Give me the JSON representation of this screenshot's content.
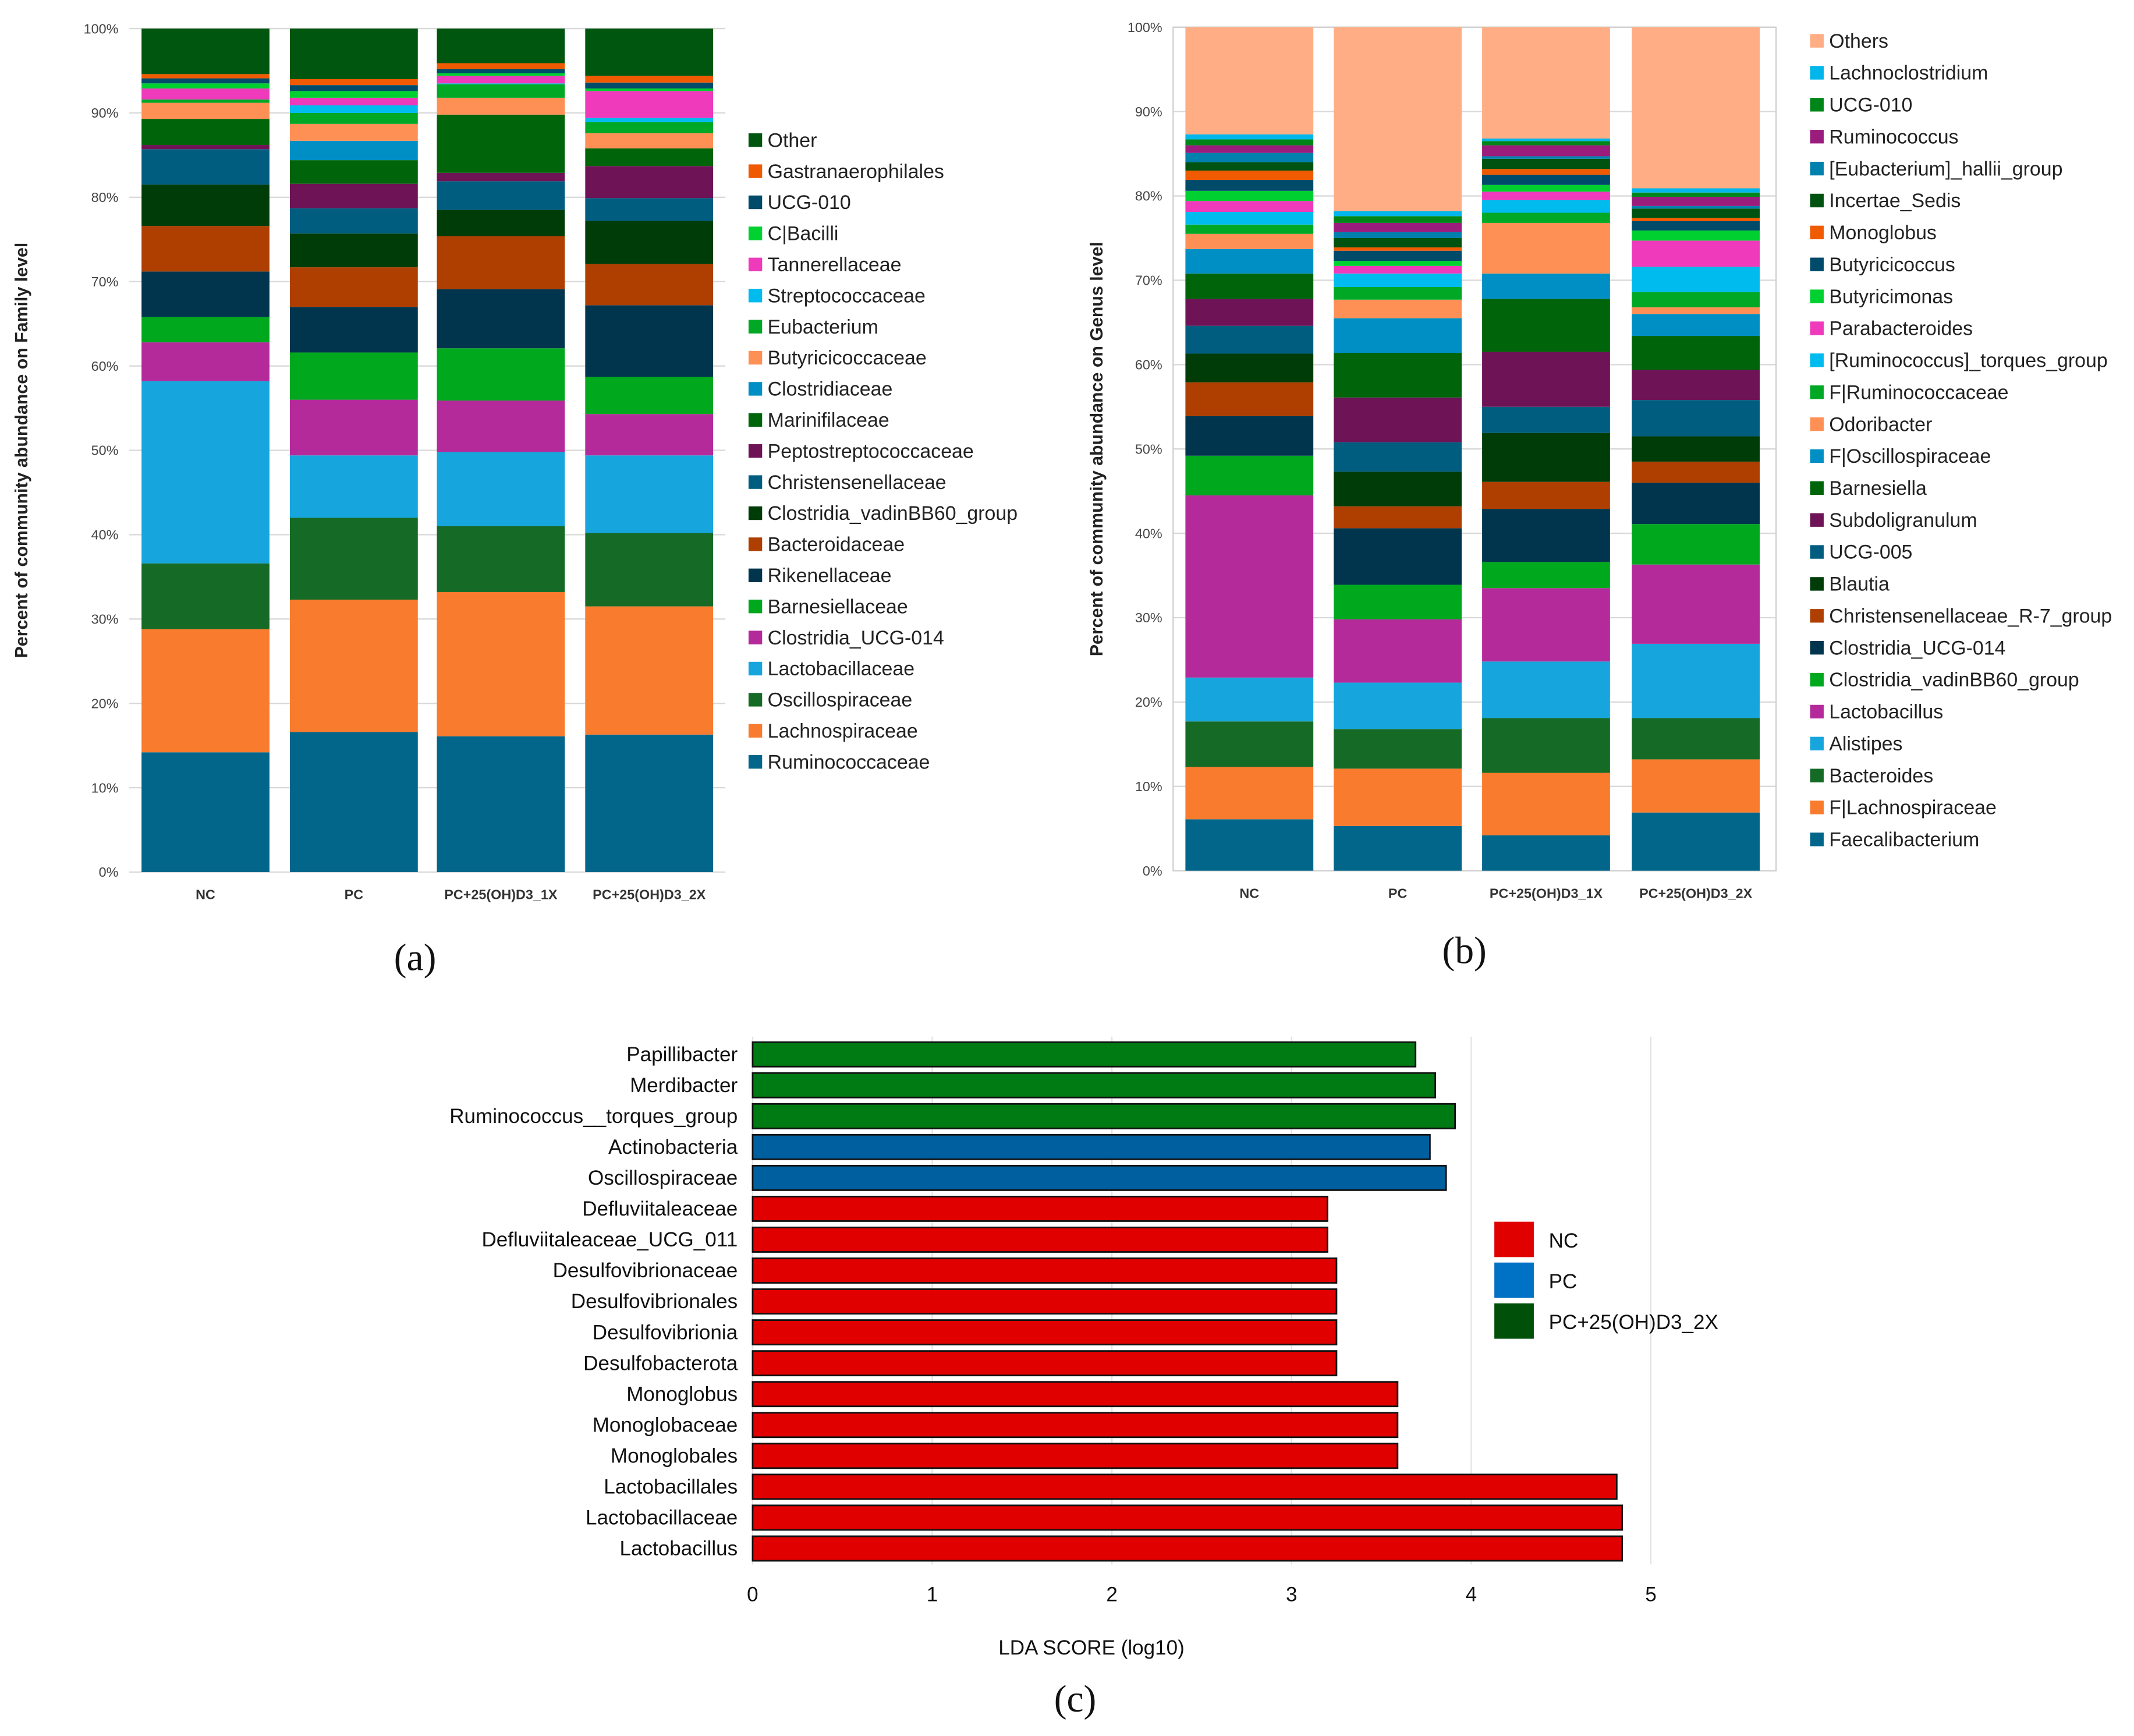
{
  "chart_data": [
    {
      "type": "bar",
      "stacked": true,
      "panel_label": "(a)",
      "title": "",
      "ylabel": "Percent of community  abundance on Family level",
      "xlabel": "",
      "ylim": [
        0,
        100
      ],
      "yticks": [
        "0%",
        "10%",
        "20%",
        "30%",
        "40%",
        "50%",
        "60%",
        "70%",
        "80%",
        "90%",
        "100%"
      ],
      "categories": [
        "NC",
        "PC",
        "PC+25(OH)D3_1X",
        "PC+25(OH)D3_2X"
      ],
      "legend_position": "right",
      "series": [
        {
          "name": "Ruminococcaceae",
          "color": "#02668b",
          "values": [
            14.2,
            16.6,
            16.1,
            16.3
          ]
        },
        {
          "name": "Lachnospiraceae",
          "color": "#f97b2d",
          "values": [
            14.6,
            15.7,
            17.1,
            15.2
          ]
        },
        {
          "name": "Oscillospiraceae",
          "color": "#156b25",
          "values": [
            7.8,
            9.7,
            7.8,
            8.7
          ]
        },
        {
          "name": "Lactobacillaceae",
          "color": "#16a6dd",
          "values": [
            21.6,
            7.4,
            8.8,
            9.2
          ]
        },
        {
          "name": "Clostridia_UCG-014",
          "color": "#b52a9a",
          "values": [
            4.6,
            6.6,
            6.1,
            4.9
          ]
        },
        {
          "name": "Barnesiellaceae",
          "color": "#00a81e",
          "values": [
            3.0,
            5.6,
            6.2,
            4.4
          ]
        },
        {
          "name": "Rikenellaceae",
          "color": "#00354d",
          "values": [
            5.4,
            5.4,
            7.0,
            8.5
          ]
        },
        {
          "name": "Bacteroidaceae",
          "color": "#ae3f00",
          "values": [
            5.4,
            4.7,
            6.3,
            4.9
          ]
        },
        {
          "name": "Clostridia_vadinBB60_group",
          "color": "#003c08",
          "values": [
            4.9,
            4.0,
            3.1,
            5.1
          ]
        },
        {
          "name": "Christensenellaceae",
          "color": "#005d80",
          "values": [
            4.2,
            3.0,
            3.4,
            2.7
          ]
        },
        {
          "name": "Peptostreptococcaceae",
          "color": "#6e1456",
          "values": [
            0.5,
            2.9,
            1.0,
            3.8
          ]
        },
        {
          "name": "Marinifilaceae",
          "color": "#00640a",
          "values": [
            3.1,
            2.8,
            6.9,
            2.1
          ]
        },
        {
          "name": "Clostridiaceae",
          "color": "#008fc4",
          "values": [
            0.0,
            2.3,
            0.0,
            0.0
          ]
        },
        {
          "name": "Butyricicoccaceae",
          "color": "#ff9055",
          "values": [
            1.9,
            2.0,
            2.0,
            1.8
          ]
        },
        {
          "name": "Eubacterium",
          "color": "#00a826",
          "values": [
            0.4,
            1.3,
            1.6,
            1.3
          ]
        },
        {
          "name": "Streptococcaceae",
          "color": "#00bbee",
          "values": [
            0.0,
            0.9,
            0.1,
            0.5
          ]
        },
        {
          "name": "Tannerellaceae",
          "color": "#ee3abb",
          "values": [
            1.3,
            0.9,
            0.9,
            3.2
          ]
        },
        {
          "name": "C|Bacilli",
          "color": "#00d030",
          "values": [
            0.6,
            0.8,
            0.3,
            0.3
          ]
        },
        {
          "name": "UCG-010",
          "color": "#004a6a",
          "values": [
            0.6,
            0.7,
            0.5,
            0.7
          ]
        },
        {
          "name": "Gastranaerophilales",
          "color": "#f05a00",
          "values": [
            0.5,
            0.7,
            0.7,
            0.8
          ]
        },
        {
          "name": "Other",
          "color": "#00550f",
          "values": [
            5.4,
            6.0,
            4.1,
            5.6
          ]
        }
      ]
    },
    {
      "type": "bar",
      "stacked": true,
      "panel_label": "(b)",
      "title": "",
      "ylabel": "Percent of community  abundance on Genus level",
      "xlabel": "",
      "ylim": [
        0,
        100
      ],
      "yticks": [
        "0%",
        "10%",
        "20%",
        "30%",
        "40%",
        "50%",
        "60%",
        "70%",
        "80%",
        "90%",
        "100%"
      ],
      "categories": [
        "NC",
        "PC",
        "PC+25(OH)D3_1X",
        "PC+25(OH)D3_2X"
      ],
      "legend_position": "right",
      "series": [
        {
          "name": "Faecalibacterium",
          "color": "#02668b",
          "values": [
            6.1,
            5.3,
            4.2,
            6.9
          ]
        },
        {
          "name": "F|Lachnospiraceae",
          "color": "#f97b2d",
          "values": [
            6.2,
            6.8,
            7.4,
            6.3
          ]
        },
        {
          "name": "Bacteroides",
          "color": "#156b25",
          "values": [
            5.4,
            4.7,
            6.5,
            4.9
          ]
        },
        {
          "name": "Alistipes",
          "color": "#16a6dd",
          "values": [
            5.2,
            5.5,
            6.7,
            8.8
          ]
        },
        {
          "name": "Lactobacillus",
          "color": "#b52a9a",
          "values": [
            21.6,
            7.5,
            8.7,
            9.4
          ]
        },
        {
          "name": "Clostridia_vadinBB60_group",
          "color": "#00a81e",
          "values": [
            4.7,
            4.1,
            3.1,
            4.8
          ]
        },
        {
          "name": "Clostridia_UCG-014",
          "color": "#00354d",
          "values": [
            4.7,
            6.7,
            6.3,
            4.9
          ]
        },
        {
          "name": "Christensenellaceae_R-7_group",
          "color": "#ae3f00",
          "values": [
            4.0,
            2.6,
            3.2,
            2.5
          ]
        },
        {
          "name": "Blautia",
          "color": "#003c08",
          "values": [
            3.4,
            4.1,
            5.8,
            3.0
          ]
        },
        {
          "name": "UCG-005",
          "color": "#005d80",
          "values": [
            3.3,
            3.5,
            3.1,
            4.3
          ]
        },
        {
          "name": "Subdoligranulum",
          "color": "#6e1456",
          "values": [
            3.2,
            5.3,
            6.5,
            3.6
          ]
        },
        {
          "name": "Barnesiella",
          "color": "#00640a",
          "values": [
            3.0,
            5.3,
            6.3,
            4.0
          ]
        },
        {
          "name": "F|Oscillospiraceae",
          "color": "#008fc4",
          "values": [
            2.9,
            4.1,
            3.0,
            2.6
          ]
        },
        {
          "name": "Odoribacter",
          "color": "#ff9055",
          "values": [
            1.8,
            2.2,
            6.0,
            0.8
          ]
        },
        {
          "name": "F|Ruminococcaceae",
          "color": "#00a826",
          "values": [
            1.1,
            1.5,
            1.2,
            1.8
          ]
        },
        {
          "name": "[Ruminococcus]_torques_group",
          "color": "#00bbee",
          "values": [
            1.5,
            1.6,
            1.5,
            3.0
          ]
        },
        {
          "name": "Parabacteroides",
          "color": "#ee3abb",
          "values": [
            1.3,
            0.9,
            1.0,
            3.1
          ]
        },
        {
          "name": "Butyricimonas",
          "color": "#00d030",
          "values": [
            1.2,
            0.6,
            0.8,
            1.2
          ]
        },
        {
          "name": "Butyricicoccus",
          "color": "#004a6a",
          "values": [
            1.3,
            1.2,
            1.2,
            1.1
          ]
        },
        {
          "name": "Monoglobus",
          "color": "#f05a00",
          "values": [
            1.1,
            0.4,
            0.7,
            0.4
          ]
        },
        {
          "name": "Incertae_Sedis",
          "color": "#005210",
          "values": [
            1.0,
            1.1,
            1.2,
            1.1
          ]
        },
        {
          "name": "[Eubacterium]_hallii_group",
          "color": "#0080ad",
          "values": [
            1.1,
            0.7,
            0.3,
            0.3
          ]
        },
        {
          "name": "Ruminococcus",
          "color": "#9a1c7d",
          "values": [
            0.9,
            1.1,
            1.3,
            1.1
          ]
        },
        {
          "name": "UCG-010",
          "color": "#008618",
          "values": [
            0.7,
            0.8,
            0.5,
            0.5
          ]
        },
        {
          "name": "Lachnoclostridium",
          "color": "#00b6ea",
          "values": [
            0.6,
            0.6,
            0.3,
            0.5
          ]
        },
        {
          "name": "Others",
          "color": "#ffad85",
          "values": [
            12.7,
            21.8,
            13.2,
            19.1
          ]
        }
      ]
    },
    {
      "type": "bar",
      "orientation": "horizontal",
      "panel_label": "(c)",
      "title": "",
      "xlabel": "LDA SCORE (log10)",
      "ylabel": "",
      "xlim": [
        0,
        5
      ],
      "xticks": [
        "0",
        "1",
        "2",
        "3",
        "4",
        "5"
      ],
      "legend_position": "right",
      "groups": [
        {
          "name": "NC",
          "color": "#e00000",
          "legend_color": "#e00000"
        },
        {
          "name": "PC",
          "color": "#005f9e",
          "legend_color": "#0072c6"
        },
        {
          "name": "PC+25(OH)D3_2X",
          "color": "#007a12",
          "legend_color": "#00500a"
        }
      ],
      "bars": [
        {
          "label": "Papillibacter",
          "group": 2,
          "value": 3.69
        },
        {
          "label": "Merdibacter",
          "group": 2,
          "value": 3.8
        },
        {
          "label": "Ruminococcus__torques_group",
          "group": 2,
          "value": 3.91
        },
        {
          "label": "Actinobacteria",
          "group": 1,
          "value": 3.77
        },
        {
          "label": "Oscillospiraceae",
          "group": 1,
          "value": 3.86
        },
        {
          "label": "Defluviitaleaceae",
          "group": 0,
          "value": 3.2
        },
        {
          "label": "Defluviitaleaceae_UCG_011",
          "group": 0,
          "value": 3.2
        },
        {
          "label": "Desulfovibrionaceae",
          "group": 0,
          "value": 3.25
        },
        {
          "label": "Desulfovibrionales",
          "group": 0,
          "value": 3.25
        },
        {
          "label": "Desulfovibrionia",
          "group": 0,
          "value": 3.25
        },
        {
          "label": "Desulfobacterota",
          "group": 0,
          "value": 3.25
        },
        {
          "label": "Monoglobus",
          "group": 0,
          "value": 3.59
        },
        {
          "label": "Monoglobaceae",
          "group": 0,
          "value": 3.59
        },
        {
          "label": "Monoglobales",
          "group": 0,
          "value": 3.59
        },
        {
          "label": "Lactobacillales",
          "group": 0,
          "value": 4.81
        },
        {
          "label": "Lactobacillaceae",
          "group": 0,
          "value": 4.84
        },
        {
          "label": "Lactobacillus",
          "group": 0,
          "value": 4.84
        }
      ]
    }
  ]
}
